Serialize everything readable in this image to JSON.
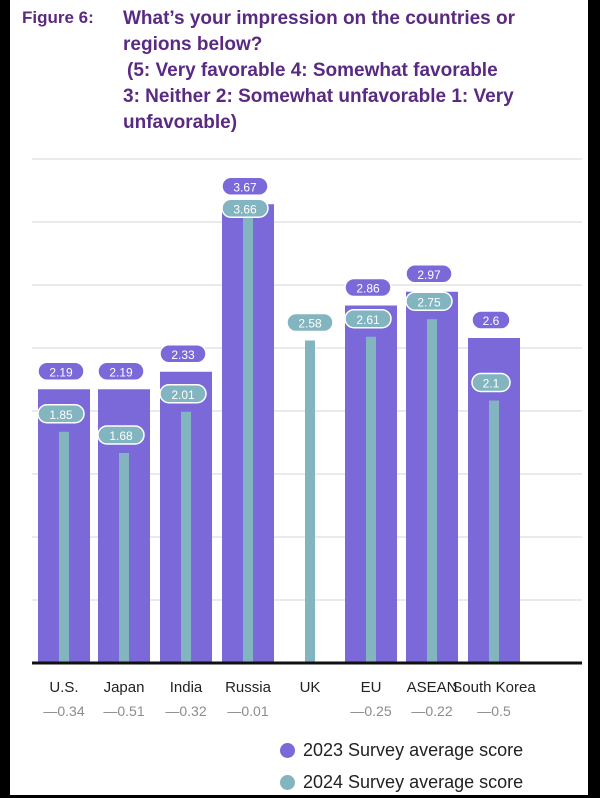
{
  "figure_label": "Figure 6:",
  "title_lines": [
    "What’s your impression on the countries or",
    "regions below?",
    "(5: Very favorable 4: Somewhat favorable",
    "3: Neither 2: Somewhat unfavorable 1: Very",
    "unfavorable)"
  ],
  "colors": {
    "series_2023": "#7b68d9",
    "series_2024": "#82b5bf",
    "title": "#5a2a82",
    "grid": "#d6d6d6",
    "baseline": "#111111",
    "change_text": "#8c8c8c"
  },
  "chart_data": {
    "type": "bar",
    "title": "What’s your impression on the countries or regions below?",
    "categories": [
      "U.S.",
      "Japan",
      "India",
      "Russia",
      "UK",
      "EU",
      "ASEAN",
      "South Korea"
    ],
    "series": [
      {
        "name": "2023 Survey average score",
        "values": [
          2.19,
          2.19,
          2.33,
          3.67,
          null,
          2.86,
          2.97,
          2.6
        ]
      },
      {
        "name": "2024 Survey average score",
        "values": [
          1.85,
          1.68,
          2.01,
          3.66,
          2.58,
          2.61,
          2.75,
          2.1
        ]
      }
    ],
    "changes": [
      "—0.34",
      "—0.51",
      "—0.32",
      "—0.01",
      "",
      "—0.25",
      "—0.22",
      "—0.5"
    ],
    "ylim": [
      0,
      3.8
    ],
    "grid": true,
    "legend_position": "bottom-right"
  }
}
